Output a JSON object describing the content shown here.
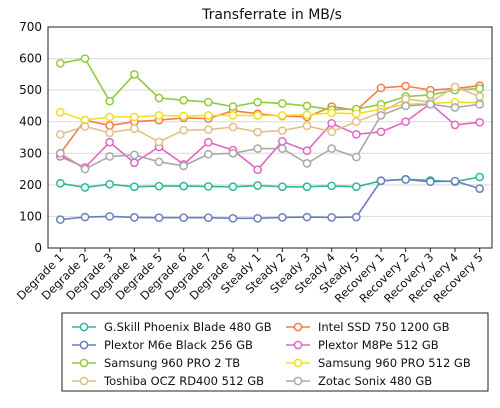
{
  "chart_data": {
    "type": "line",
    "title": "Transferrate in MB/s",
    "xlabel": "",
    "ylabel": "",
    "ylim": [
      0,
      700
    ],
    "yticks": [
      0,
      100,
      200,
      300,
      400,
      500,
      600,
      700
    ],
    "grid": true,
    "legend_position": "bottom",
    "categories": [
      "Degrade 1",
      "Degrade 2",
      "Degrade 3",
      "Degrade 4",
      "Degrade 5",
      "Degrade 6",
      "Degrade 7",
      "Degrade 8",
      "Steady 1",
      "Steady 2",
      "Steady 3",
      "Steady 4",
      "Steady 5",
      "Recovery 1",
      "Recovery 2",
      "Recovery 3",
      "Recovery 4",
      "Recovery 5"
    ],
    "series": [
      {
        "name": "G.Skill Phoenix Blade 480 GB",
        "color": "#2fb89a",
        "values": [
          205,
          192,
          202,
          194,
          196,
          196,
          195,
          194,
          198,
          194,
          194,
          197,
          194,
          213,
          218,
          214,
          210,
          225
        ]
      },
      {
        "name": "Intel SSD 750 1200 GB",
        "color": "#f47c4a",
        "values": [
          300,
          405,
          388,
          400,
          405,
          412,
          410,
          435,
          425,
          418,
          415,
          448,
          436,
          507,
          513,
          500,
          505,
          514
        ]
      },
      {
        "name": "Plextor M6e Black 256 GB",
        "color": "#6b7fbd",
        "values": [
          90,
          98,
          100,
          97,
          96,
          96,
          96,
          94,
          94,
          97,
          98,
          97,
          98,
          213,
          217,
          210,
          212,
          188
        ]
      },
      {
        "name": "Plextor M8Pe 512 GB",
        "color": "#e067c4",
        "values": [
          290,
          255,
          335,
          270,
          320,
          265,
          335,
          310,
          248,
          338,
          308,
          395,
          360,
          368,
          400,
          457,
          390,
          398
        ]
      },
      {
        "name": "Samsung 960 PRO 2 TB",
        "color": "#8fcc3a",
        "values": [
          585,
          600,
          465,
          550,
          475,
          468,
          462,
          448,
          462,
          458,
          450,
          438,
          440,
          455,
          480,
          485,
          500,
          505
        ]
      },
      {
        "name": "Samsung 960 PRO 512 GB",
        "color": "#f2e01b",
        "values": [
          430,
          405,
          415,
          415,
          420,
          418,
          420,
          420,
          420,
          420,
          422,
          428,
          425,
          440,
          455,
          458,
          462,
          460
        ]
      },
      {
        "name": "Toshiba OCZ RD400 512 GB",
        "color": "#e0bf8b",
        "values": [
          360,
          385,
          365,
          378,
          336,
          373,
          375,
          383,
          367,
          372,
          387,
          368,
          400,
          430,
          472,
          462,
          510,
          480
        ]
      },
      {
        "name": "Zotac Sonix 480 GB",
        "color": "#a9a9a9",
        "values": [
          300,
          250,
          290,
          295,
          273,
          260,
          297,
          300,
          315,
          315,
          268,
          315,
          288,
          420,
          450,
          455,
          445,
          455
        ]
      }
    ]
  }
}
